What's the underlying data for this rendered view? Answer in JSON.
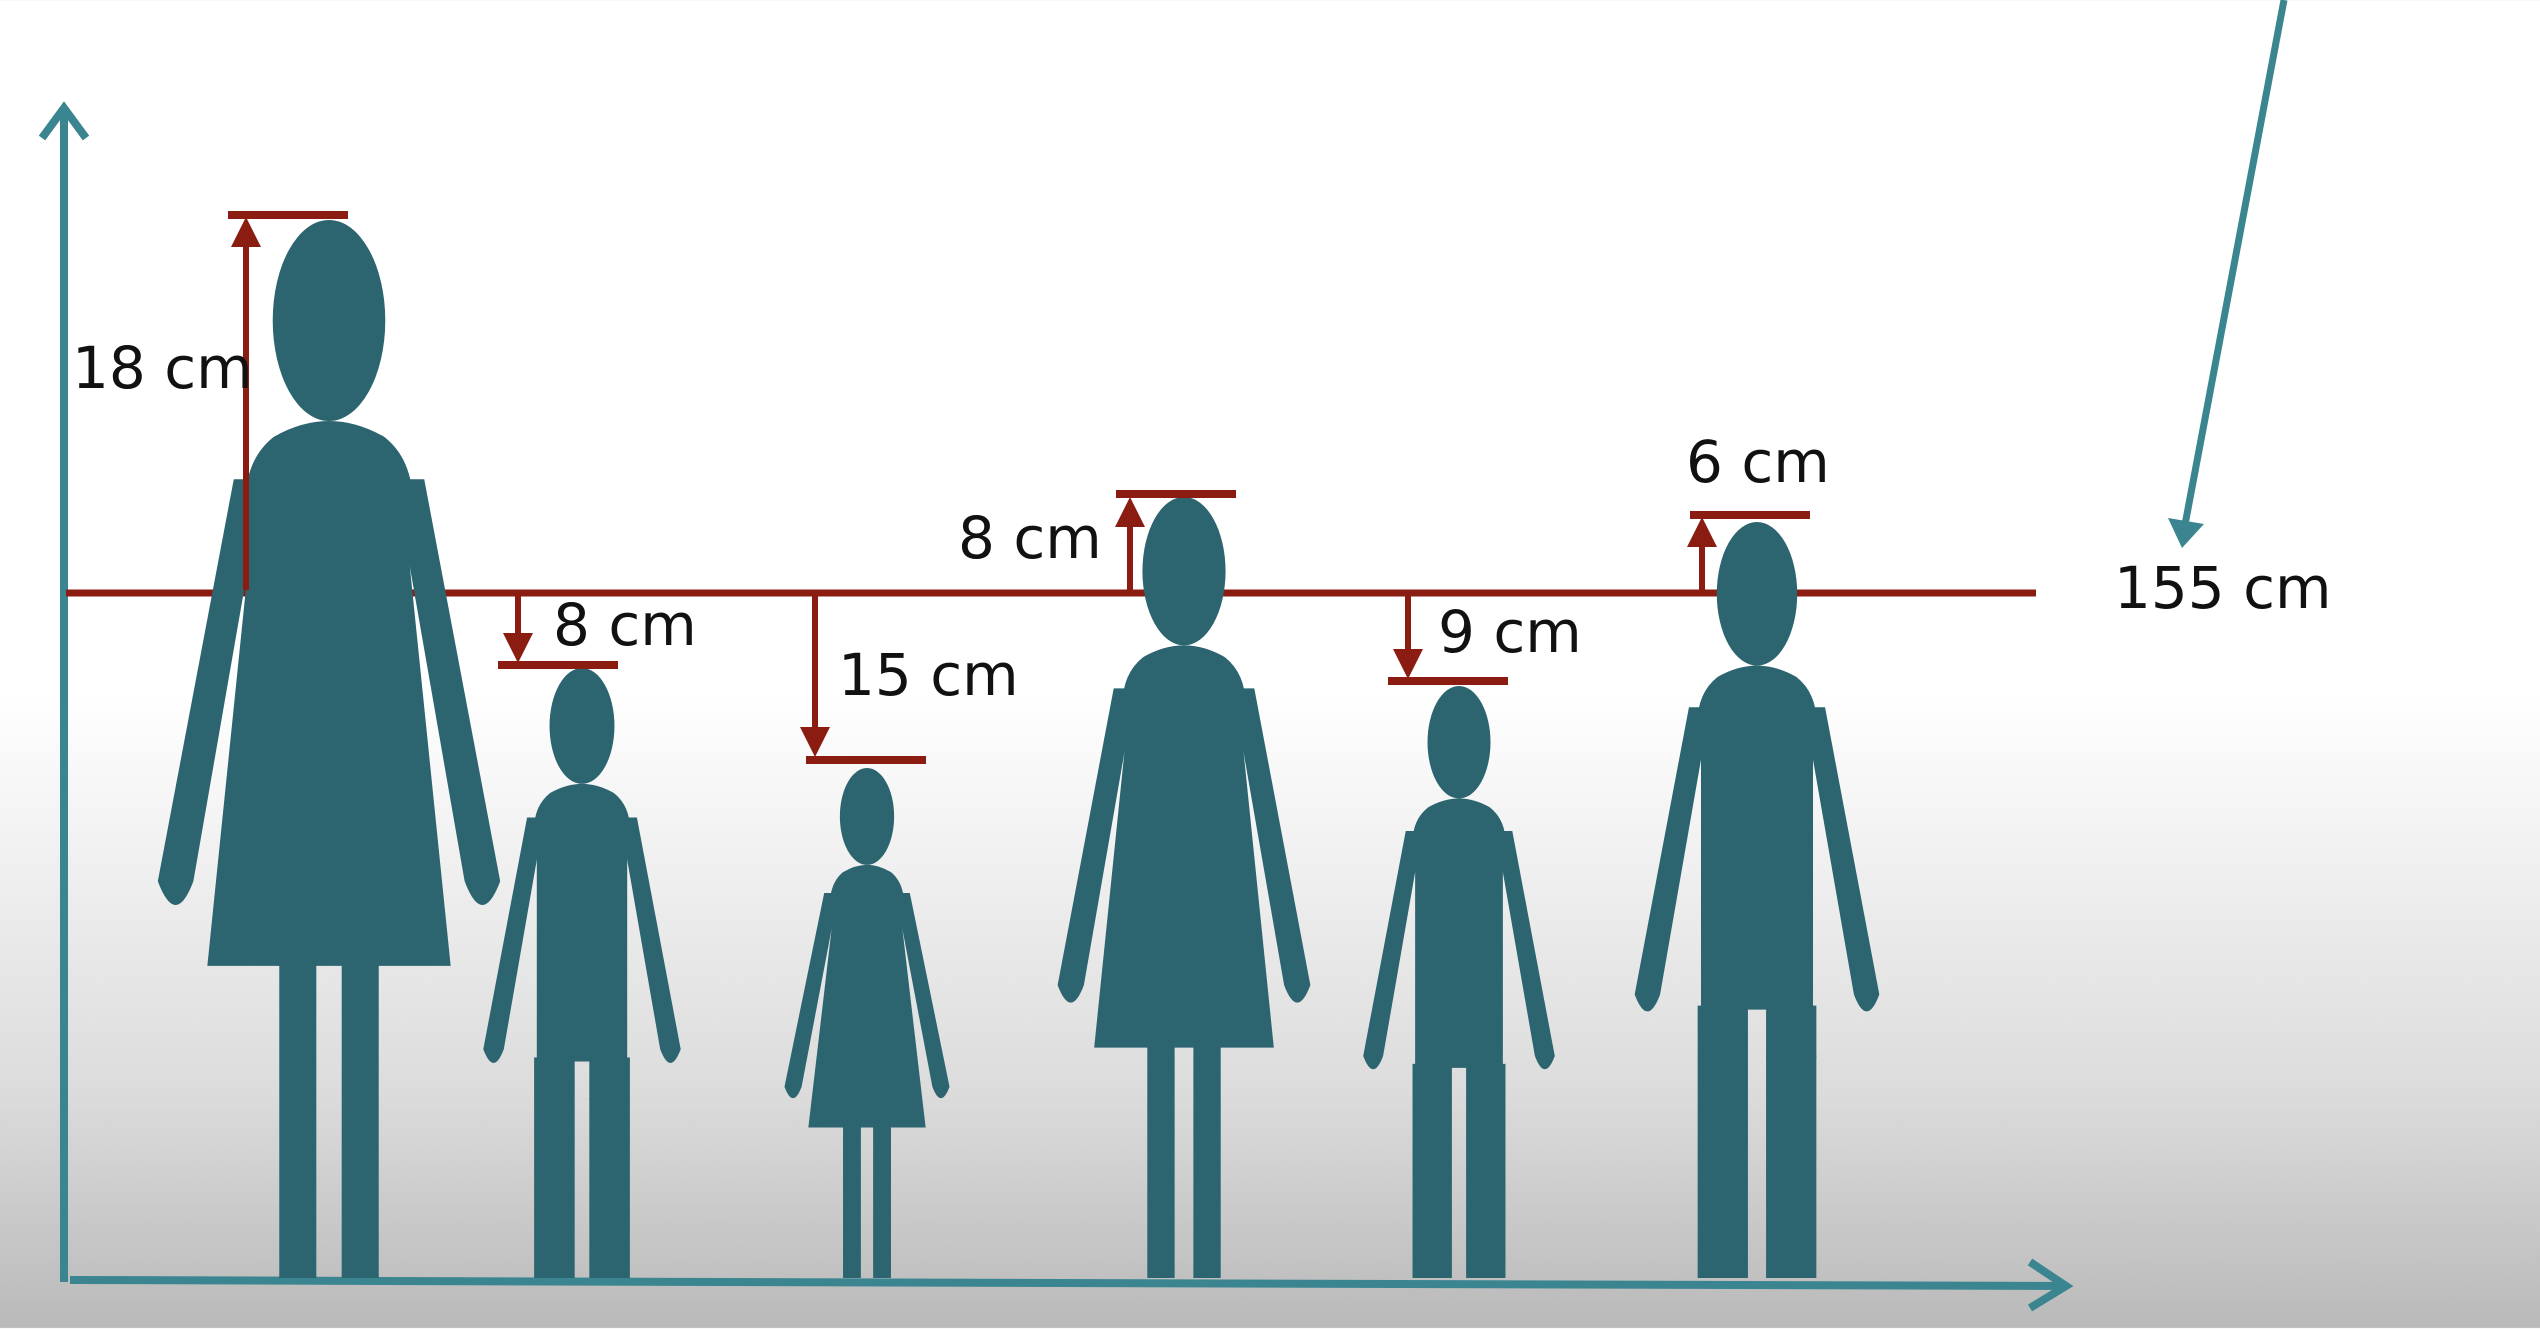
{
  "colors": {
    "axis": "#3a8590",
    "figure_top": "#3d8a95",
    "figure_bottom": "#2c6470",
    "marker": "#8b1c12",
    "text": "#111111"
  },
  "reference": {
    "label": "155 cm",
    "value_cm": 155
  },
  "figures": [
    {
      "type": "woman",
      "label": "18 cm",
      "diff_cm": 18,
      "direction": "above"
    },
    {
      "type": "boy",
      "label": "8 cm",
      "diff_cm": -8,
      "direction": "below"
    },
    {
      "type": "girl",
      "label": "15 cm",
      "diff_cm": -15,
      "direction": "below"
    },
    {
      "type": "woman",
      "label": "8 cm",
      "diff_cm": 8,
      "direction": "above"
    },
    {
      "type": "boy",
      "label": "9 cm",
      "diff_cm": -9,
      "direction": "below"
    },
    {
      "type": "man",
      "label": "6 cm",
      "diff_cm": 6,
      "direction": "above"
    }
  ]
}
